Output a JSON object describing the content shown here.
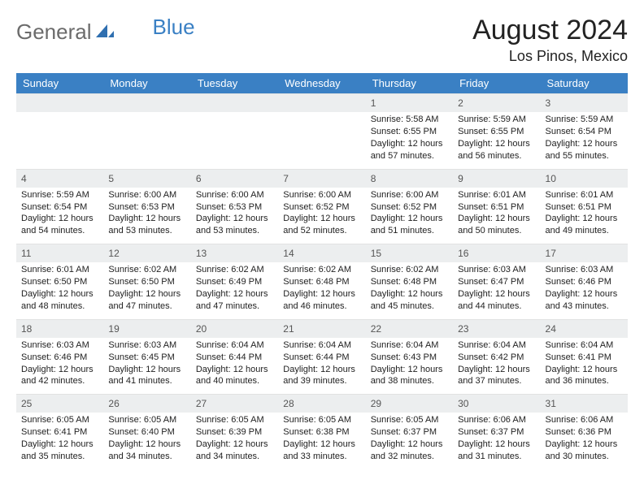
{
  "logo": {
    "text1": "General",
    "text2": "Blue"
  },
  "title": "August 2024",
  "location": "Los Pinos, Mexico",
  "colors": {
    "header_bg": "#3a80c4",
    "header_fg": "#ffffff",
    "daynum_bg": "#eceeef",
    "page_bg": "#ffffff",
    "logo_gray": "#6b6b6b"
  },
  "weekdays": [
    "Sunday",
    "Monday",
    "Tuesday",
    "Wednesday",
    "Thursday",
    "Friday",
    "Saturday"
  ],
  "weeks": [
    [
      null,
      null,
      null,
      null,
      {
        "n": "1",
        "sr": "Sunrise: 5:58 AM",
        "ss": "Sunset: 6:55 PM",
        "dl": "Daylight: 12 hours and 57 minutes."
      },
      {
        "n": "2",
        "sr": "Sunrise: 5:59 AM",
        "ss": "Sunset: 6:55 PM",
        "dl": "Daylight: 12 hours and 56 minutes."
      },
      {
        "n": "3",
        "sr": "Sunrise: 5:59 AM",
        "ss": "Sunset: 6:54 PM",
        "dl": "Daylight: 12 hours and 55 minutes."
      }
    ],
    [
      {
        "n": "4",
        "sr": "Sunrise: 5:59 AM",
        "ss": "Sunset: 6:54 PM",
        "dl": "Daylight: 12 hours and 54 minutes."
      },
      {
        "n": "5",
        "sr": "Sunrise: 6:00 AM",
        "ss": "Sunset: 6:53 PM",
        "dl": "Daylight: 12 hours and 53 minutes."
      },
      {
        "n": "6",
        "sr": "Sunrise: 6:00 AM",
        "ss": "Sunset: 6:53 PM",
        "dl": "Daylight: 12 hours and 53 minutes."
      },
      {
        "n": "7",
        "sr": "Sunrise: 6:00 AM",
        "ss": "Sunset: 6:52 PM",
        "dl": "Daylight: 12 hours and 52 minutes."
      },
      {
        "n": "8",
        "sr": "Sunrise: 6:00 AM",
        "ss": "Sunset: 6:52 PM",
        "dl": "Daylight: 12 hours and 51 minutes."
      },
      {
        "n": "9",
        "sr": "Sunrise: 6:01 AM",
        "ss": "Sunset: 6:51 PM",
        "dl": "Daylight: 12 hours and 50 minutes."
      },
      {
        "n": "10",
        "sr": "Sunrise: 6:01 AM",
        "ss": "Sunset: 6:51 PM",
        "dl": "Daylight: 12 hours and 49 minutes."
      }
    ],
    [
      {
        "n": "11",
        "sr": "Sunrise: 6:01 AM",
        "ss": "Sunset: 6:50 PM",
        "dl": "Daylight: 12 hours and 48 minutes."
      },
      {
        "n": "12",
        "sr": "Sunrise: 6:02 AM",
        "ss": "Sunset: 6:50 PM",
        "dl": "Daylight: 12 hours and 47 minutes."
      },
      {
        "n": "13",
        "sr": "Sunrise: 6:02 AM",
        "ss": "Sunset: 6:49 PM",
        "dl": "Daylight: 12 hours and 47 minutes."
      },
      {
        "n": "14",
        "sr": "Sunrise: 6:02 AM",
        "ss": "Sunset: 6:48 PM",
        "dl": "Daylight: 12 hours and 46 minutes."
      },
      {
        "n": "15",
        "sr": "Sunrise: 6:02 AM",
        "ss": "Sunset: 6:48 PM",
        "dl": "Daylight: 12 hours and 45 minutes."
      },
      {
        "n": "16",
        "sr": "Sunrise: 6:03 AM",
        "ss": "Sunset: 6:47 PM",
        "dl": "Daylight: 12 hours and 44 minutes."
      },
      {
        "n": "17",
        "sr": "Sunrise: 6:03 AM",
        "ss": "Sunset: 6:46 PM",
        "dl": "Daylight: 12 hours and 43 minutes."
      }
    ],
    [
      {
        "n": "18",
        "sr": "Sunrise: 6:03 AM",
        "ss": "Sunset: 6:46 PM",
        "dl": "Daylight: 12 hours and 42 minutes."
      },
      {
        "n": "19",
        "sr": "Sunrise: 6:03 AM",
        "ss": "Sunset: 6:45 PM",
        "dl": "Daylight: 12 hours and 41 minutes."
      },
      {
        "n": "20",
        "sr": "Sunrise: 6:04 AM",
        "ss": "Sunset: 6:44 PM",
        "dl": "Daylight: 12 hours and 40 minutes."
      },
      {
        "n": "21",
        "sr": "Sunrise: 6:04 AM",
        "ss": "Sunset: 6:44 PM",
        "dl": "Daylight: 12 hours and 39 minutes."
      },
      {
        "n": "22",
        "sr": "Sunrise: 6:04 AM",
        "ss": "Sunset: 6:43 PM",
        "dl": "Daylight: 12 hours and 38 minutes."
      },
      {
        "n": "23",
        "sr": "Sunrise: 6:04 AM",
        "ss": "Sunset: 6:42 PM",
        "dl": "Daylight: 12 hours and 37 minutes."
      },
      {
        "n": "24",
        "sr": "Sunrise: 6:04 AM",
        "ss": "Sunset: 6:41 PM",
        "dl": "Daylight: 12 hours and 36 minutes."
      }
    ],
    [
      {
        "n": "25",
        "sr": "Sunrise: 6:05 AM",
        "ss": "Sunset: 6:41 PM",
        "dl": "Daylight: 12 hours and 35 minutes."
      },
      {
        "n": "26",
        "sr": "Sunrise: 6:05 AM",
        "ss": "Sunset: 6:40 PM",
        "dl": "Daylight: 12 hours and 34 minutes."
      },
      {
        "n": "27",
        "sr": "Sunrise: 6:05 AM",
        "ss": "Sunset: 6:39 PM",
        "dl": "Daylight: 12 hours and 34 minutes."
      },
      {
        "n": "28",
        "sr": "Sunrise: 6:05 AM",
        "ss": "Sunset: 6:38 PM",
        "dl": "Daylight: 12 hours and 33 minutes."
      },
      {
        "n": "29",
        "sr": "Sunrise: 6:05 AM",
        "ss": "Sunset: 6:37 PM",
        "dl": "Daylight: 12 hours and 32 minutes."
      },
      {
        "n": "30",
        "sr": "Sunrise: 6:06 AM",
        "ss": "Sunset: 6:37 PM",
        "dl": "Daylight: 12 hours and 31 minutes."
      },
      {
        "n": "31",
        "sr": "Sunrise: 6:06 AM",
        "ss": "Sunset: 6:36 PM",
        "dl": "Daylight: 12 hours and 30 minutes."
      }
    ]
  ]
}
